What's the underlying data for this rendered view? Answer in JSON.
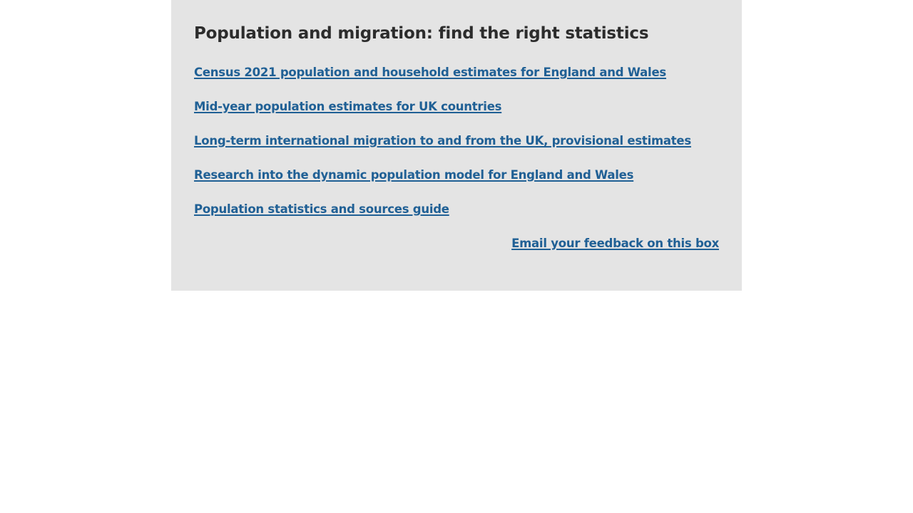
{
  "panel": {
    "title": "Population and migration: find the right statistics",
    "links": [
      "Census 2021 population and household estimates for England and Wales",
      "Mid-year population estimates for UK countries",
      "Long-term international migration to and from the UK, provisional estimates",
      "Research into the dynamic population model for England and Wales",
      "Population statistics and sources guide"
    ],
    "feedback_label": "Email your feedback on this box"
  },
  "colors": {
    "panel_background": "#e4e4e4",
    "link": "#206095",
    "title": "#2c2c2c"
  }
}
